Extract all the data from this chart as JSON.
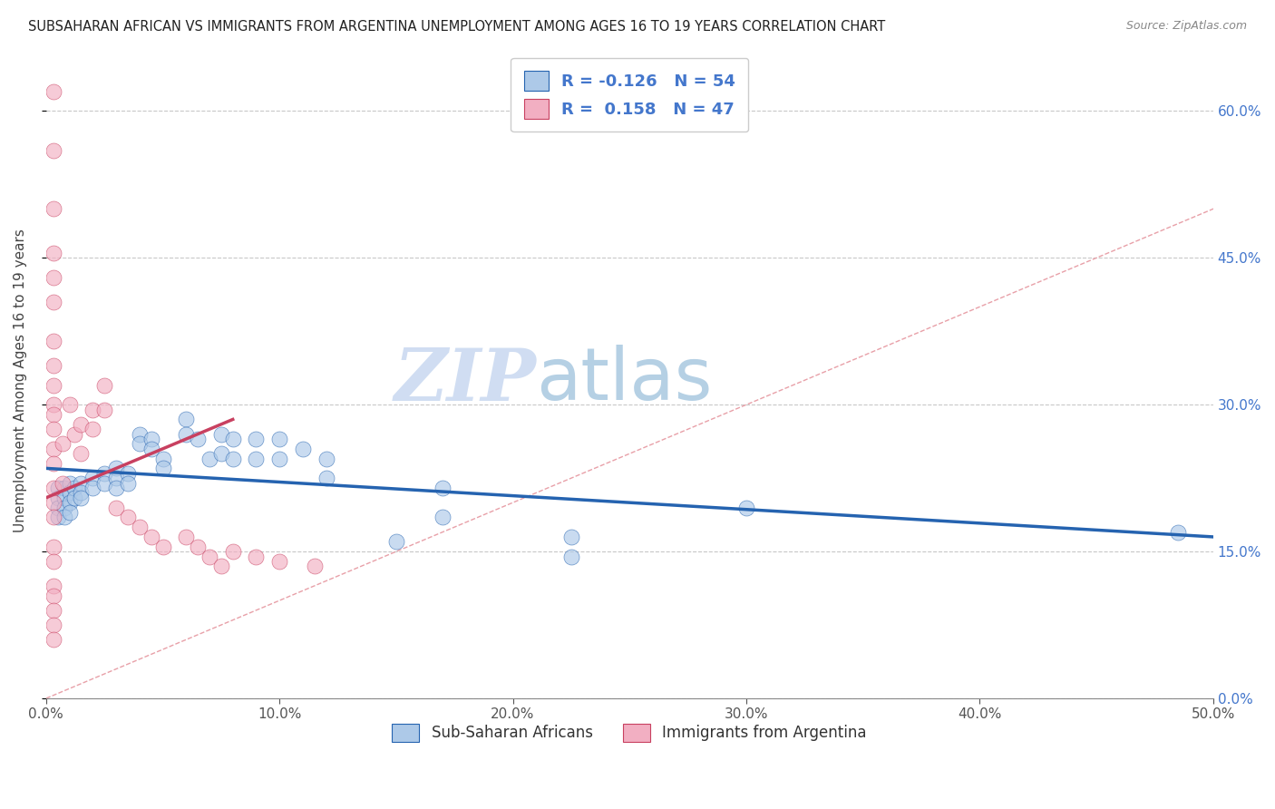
{
  "title": "SUBSAHARAN AFRICAN VS IMMIGRANTS FROM ARGENTINA UNEMPLOYMENT AMONG AGES 16 TO 19 YEARS CORRELATION CHART",
  "source": "Source: ZipAtlas.com",
  "ylabel": "Unemployment Among Ages 16 to 19 years",
  "r1": -0.126,
  "n1": 54,
  "r2": 0.158,
  "n2": 47,
  "legend1_label": "Sub-Saharan Africans",
  "legend2_label": "Immigrants from Argentina",
  "color_blue": "#adc9e8",
  "color_pink": "#f2afc2",
  "line_blue": "#2563b0",
  "line_pink": "#c84060",
  "watermark_zip": "ZIP",
  "watermark_atlas": "atlas",
  "background": "#ffffff",
  "xlim": [
    0.0,
    0.5
  ],
  "ylim": [
    0.0,
    0.65
  ],
  "xticks": [
    0.0,
    0.1,
    0.2,
    0.3,
    0.4,
    0.5
  ],
  "yticks": [
    0.0,
    0.15,
    0.3,
    0.45,
    0.6
  ],
  "blue_scatter": [
    [
      0.005,
      0.215
    ],
    [
      0.005,
      0.205
    ],
    [
      0.005,
      0.195
    ],
    [
      0.005,
      0.185
    ],
    [
      0.008,
      0.215
    ],
    [
      0.008,
      0.205
    ],
    [
      0.008,
      0.195
    ],
    [
      0.008,
      0.185
    ],
    [
      0.01,
      0.22
    ],
    [
      0.01,
      0.21
    ],
    [
      0.01,
      0.2
    ],
    [
      0.01,
      0.19
    ],
    [
      0.012,
      0.215
    ],
    [
      0.012,
      0.205
    ],
    [
      0.015,
      0.22
    ],
    [
      0.015,
      0.21
    ],
    [
      0.015,
      0.205
    ],
    [
      0.02,
      0.225
    ],
    [
      0.02,
      0.215
    ],
    [
      0.025,
      0.23
    ],
    [
      0.025,
      0.22
    ],
    [
      0.03,
      0.235
    ],
    [
      0.03,
      0.225
    ],
    [
      0.03,
      0.215
    ],
    [
      0.035,
      0.23
    ],
    [
      0.035,
      0.22
    ],
    [
      0.04,
      0.27
    ],
    [
      0.04,
      0.26
    ],
    [
      0.045,
      0.265
    ],
    [
      0.045,
      0.255
    ],
    [
      0.05,
      0.245
    ],
    [
      0.05,
      0.235
    ],
    [
      0.06,
      0.285
    ],
    [
      0.06,
      0.27
    ],
    [
      0.065,
      0.265
    ],
    [
      0.07,
      0.245
    ],
    [
      0.075,
      0.27
    ],
    [
      0.075,
      0.25
    ],
    [
      0.08,
      0.265
    ],
    [
      0.08,
      0.245
    ],
    [
      0.09,
      0.265
    ],
    [
      0.09,
      0.245
    ],
    [
      0.1,
      0.265
    ],
    [
      0.1,
      0.245
    ],
    [
      0.11,
      0.255
    ],
    [
      0.12,
      0.245
    ],
    [
      0.12,
      0.225
    ],
    [
      0.15,
      0.16
    ],
    [
      0.17,
      0.215
    ],
    [
      0.17,
      0.185
    ],
    [
      0.225,
      0.165
    ],
    [
      0.225,
      0.145
    ],
    [
      0.3,
      0.195
    ],
    [
      0.485,
      0.17
    ]
  ],
  "pink_scatter": [
    [
      0.003,
      0.62
    ],
    [
      0.003,
      0.56
    ],
    [
      0.003,
      0.5
    ],
    [
      0.003,
      0.455
    ],
    [
      0.003,
      0.43
    ],
    [
      0.003,
      0.405
    ],
    [
      0.003,
      0.365
    ],
    [
      0.003,
      0.34
    ],
    [
      0.003,
      0.32
    ],
    [
      0.003,
      0.3
    ],
    [
      0.003,
      0.29
    ],
    [
      0.003,
      0.275
    ],
    [
      0.003,
      0.255
    ],
    [
      0.003,
      0.24
    ],
    [
      0.003,
      0.215
    ],
    [
      0.003,
      0.2
    ],
    [
      0.003,
      0.185
    ],
    [
      0.003,
      0.155
    ],
    [
      0.003,
      0.14
    ],
    [
      0.003,
      0.115
    ],
    [
      0.003,
      0.105
    ],
    [
      0.003,
      0.09
    ],
    [
      0.003,
      0.075
    ],
    [
      0.003,
      0.06
    ],
    [
      0.007,
      0.26
    ],
    [
      0.007,
      0.22
    ],
    [
      0.01,
      0.3
    ],
    [
      0.012,
      0.27
    ],
    [
      0.015,
      0.28
    ],
    [
      0.015,
      0.25
    ],
    [
      0.02,
      0.295
    ],
    [
      0.02,
      0.275
    ],
    [
      0.025,
      0.32
    ],
    [
      0.025,
      0.295
    ],
    [
      0.03,
      0.195
    ],
    [
      0.035,
      0.185
    ],
    [
      0.04,
      0.175
    ],
    [
      0.045,
      0.165
    ],
    [
      0.05,
      0.155
    ],
    [
      0.06,
      0.165
    ],
    [
      0.065,
      0.155
    ],
    [
      0.07,
      0.145
    ],
    [
      0.075,
      0.135
    ],
    [
      0.08,
      0.15
    ],
    [
      0.09,
      0.145
    ],
    [
      0.1,
      0.14
    ],
    [
      0.115,
      0.135
    ]
  ],
  "blue_trend_x": [
    0.0,
    0.5
  ],
  "blue_trend_y": [
    0.235,
    0.165
  ],
  "pink_trend_x": [
    0.0,
    0.08
  ],
  "pink_trend_y": [
    0.205,
    0.285
  ]
}
